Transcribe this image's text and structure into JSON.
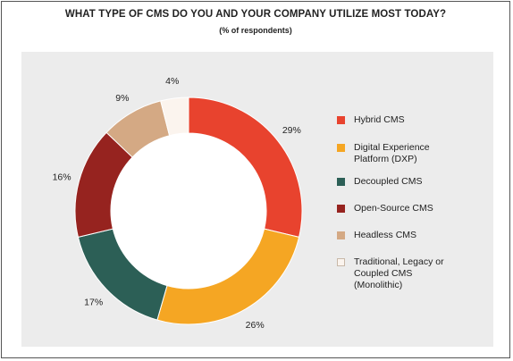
{
  "chart_data": {
    "type": "pie",
    "title": "WHAT TYPE OF CMS DO YOU AND YOUR COMPANY UTILIZE MOST TODAY?",
    "subtitle": "(% of respondents)",
    "unit": "%",
    "donut": true,
    "legend_position": "right",
    "slices": [
      {
        "label": "Hybrid CMS",
        "value": 29,
        "value_label": "29%",
        "color": "#e8432e"
      },
      {
        "label": "Digital Experience Platform (DXP)",
        "value": 26,
        "value_label": "26%",
        "color": "#f5a623"
      },
      {
        "label": "Decoupled CMS",
        "value": 17,
        "value_label": "17%",
        "color": "#2c5f56"
      },
      {
        "label": "Open-Source CMS",
        "value": 16,
        "value_label": "16%",
        "color": "#96231f"
      },
      {
        "label": "Headless CMS",
        "value": 9,
        "value_label": "9%",
        "color": "#d4a984"
      },
      {
        "label": "Traditional, Legacy or Coupled CMS (Monolithic)",
        "value": 4,
        "value_label": "4%",
        "color": "#fbf4ee"
      }
    ]
  }
}
